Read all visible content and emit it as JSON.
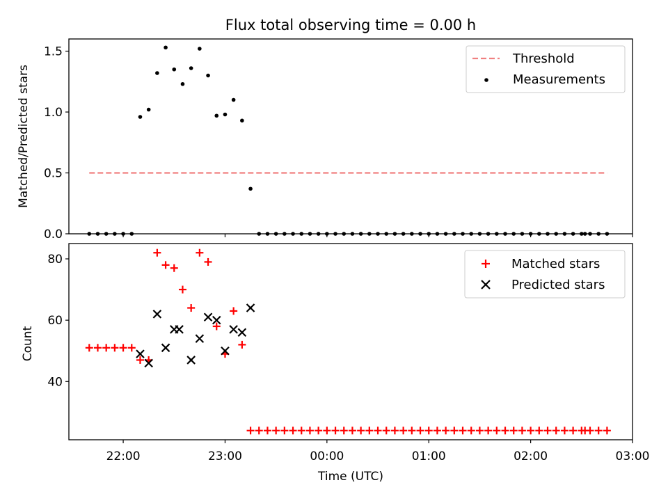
{
  "chart_data": [
    {
      "type": "scatter",
      "title": "Flux total observing time = 0.00 h",
      "ylabel": "Matched/Predicted stars",
      "xlabel": "",
      "xlim": [
        "21:28",
        "03:00"
      ],
      "ylim": [
        0,
        1.6
      ],
      "yticks": [
        "0.0",
        "0.5",
        "1.0",
        "1.5"
      ],
      "legend_position": "top-right",
      "legend": [
        {
          "name": "Threshold",
          "style": "dashed-line",
          "color": "#f08080"
        },
        {
          "name": "Measurements",
          "style": "dot",
          "color": "#000000"
        }
      ],
      "threshold": {
        "value": 0.5,
        "x_start": "21:40",
        "x_end": "02:45"
      },
      "measurements": {
        "x": [
          "21:40",
          "21:45",
          "21:50",
          "21:55",
          "22:00",
          "22:05",
          "22:10",
          "22:15",
          "22:20",
          "22:25",
          "22:30",
          "22:35",
          "22:40",
          "22:45",
          "22:50",
          "22:55",
          "23:00",
          "23:05",
          "23:10",
          "23:15",
          "23:20",
          "23:25",
          "23:30",
          "23:35",
          "23:40",
          "23:45",
          "23:50",
          "23:55",
          "00:00",
          "00:05",
          "00:10",
          "00:15",
          "00:20",
          "00:25",
          "00:30",
          "00:35",
          "00:40",
          "00:45",
          "00:50",
          "00:55",
          "01:00",
          "01:05",
          "01:10",
          "01:15",
          "01:20",
          "01:25",
          "01:30",
          "01:35",
          "01:40",
          "01:45",
          "01:50",
          "01:55",
          "02:00",
          "02:05",
          "02:10",
          "02:15",
          "02:20",
          "02:25",
          "02:30",
          "02:32",
          "02:35",
          "02:40",
          "02:45"
        ],
        "y": [
          0,
          0,
          0,
          0,
          0,
          0,
          0.96,
          1.02,
          1.32,
          1.53,
          1.35,
          1.23,
          1.36,
          1.52,
          1.3,
          0.97,
          0.98,
          1.1,
          0.93,
          0.37,
          0,
          0,
          0,
          0,
          0,
          0,
          0,
          0,
          0,
          0,
          0,
          0,
          0,
          0,
          0,
          0,
          0,
          0,
          0,
          0,
          0,
          0,
          0,
          0,
          0,
          0,
          0,
          0,
          0,
          0,
          0,
          0,
          0,
          0,
          0,
          0,
          0,
          0,
          0,
          0,
          0,
          0,
          0
        ]
      }
    },
    {
      "type": "scatter",
      "title": "",
      "ylabel": "Count",
      "xlabel": "Time (UTC)",
      "xlim": [
        "21:28",
        "03:00"
      ],
      "ylim": [
        21,
        85
      ],
      "yticks": [
        "40",
        "60",
        "80"
      ],
      "xticks": [
        "22:00",
        "23:00",
        "00:00",
        "01:00",
        "02:00",
        "03:00"
      ],
      "legend_position": "top-right",
      "series": [
        {
          "name": "Matched stars",
          "marker": "plus",
          "color": "#ff0000",
          "x": [
            "21:40",
            "21:45",
            "21:50",
            "21:55",
            "22:00",
            "22:05",
            "22:10",
            "22:15",
            "22:20",
            "22:25",
            "22:30",
            "22:35",
            "22:40",
            "22:45",
            "22:50",
            "22:55",
            "23:00",
            "23:05",
            "23:10",
            "23:15",
            "23:20",
            "23:25",
            "23:30",
            "23:35",
            "23:40",
            "23:45",
            "23:50",
            "23:55",
            "00:00",
            "00:05",
            "00:10",
            "00:15",
            "00:20",
            "00:25",
            "00:30",
            "00:35",
            "00:40",
            "00:45",
            "00:50",
            "00:55",
            "01:00",
            "01:05",
            "01:10",
            "01:15",
            "01:20",
            "01:25",
            "01:30",
            "01:35",
            "01:40",
            "01:45",
            "01:50",
            "01:55",
            "02:00",
            "02:05",
            "02:10",
            "02:15",
            "02:20",
            "02:25",
            "02:30",
            "02:32",
            "02:35",
            "02:40",
            "02:45"
          ],
          "y": [
            51,
            51,
            51,
            51,
            51,
            51,
            47,
            47,
            82,
            78,
            77,
            70,
            64,
            82,
            79,
            58,
            49,
            63,
            52,
            24,
            24,
            24,
            24,
            24,
            24,
            24,
            24,
            24,
            24,
            24,
            24,
            24,
            24,
            24,
            24,
            24,
            24,
            24,
            24,
            24,
            24,
            24,
            24,
            24,
            24,
            24,
            24,
            24,
            24,
            24,
            24,
            24,
            24,
            24,
            24,
            24,
            24,
            24,
            24,
            24,
            24,
            24,
            24
          ]
        },
        {
          "name": "Predicted stars",
          "marker": "x",
          "color": "#000000",
          "x": [
            "22:10",
            "22:15",
            "22:20",
            "22:25",
            "22:30",
            "22:33",
            "22:40",
            "22:45",
            "22:50",
            "22:55",
            "23:00",
            "23:05",
            "23:10",
            "23:15"
          ],
          "y": [
            49,
            46,
            62,
            51,
            57,
            57,
            47,
            54,
            61,
            60,
            50,
            57,
            56,
            64
          ]
        }
      ]
    }
  ]
}
